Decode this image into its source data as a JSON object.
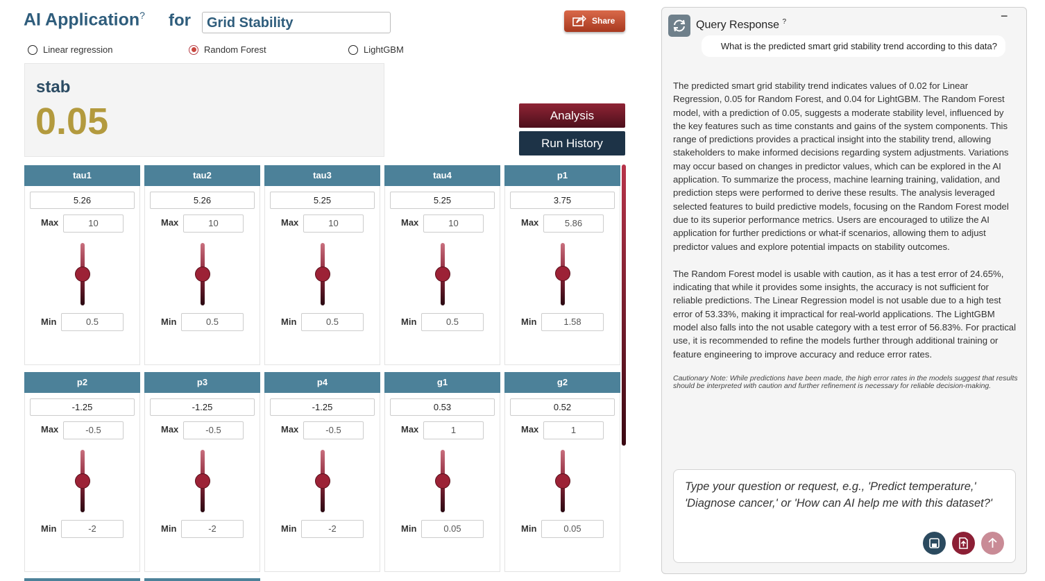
{
  "header": {
    "title": "AI Application",
    "info": "?",
    "for": "for",
    "dataset": "Grid Stability",
    "share": "Share"
  },
  "models": [
    "Linear regression",
    "Random Forest",
    "LightGBM"
  ],
  "selected_model": 1,
  "prediction": {
    "target": "stab",
    "value": "0.05"
  },
  "buttons": {
    "analysis": "Analysis",
    "run_history": "Run History"
  },
  "labels": {
    "max": "Max",
    "min": "Min"
  },
  "features": [
    {
      "name": "tau1",
      "value": "5.26",
      "max": "10",
      "min": "0.5"
    },
    {
      "name": "tau2",
      "value": "5.26",
      "max": "10",
      "min": "0.5"
    },
    {
      "name": "tau3",
      "value": "5.25",
      "max": "10",
      "min": "0.5"
    },
    {
      "name": "tau4",
      "value": "5.25",
      "max": "10",
      "min": "0.5"
    },
    {
      "name": "p1",
      "value": "3.75",
      "max": "5.86",
      "min": "1.58"
    },
    {
      "name": "p2",
      "value": "-1.25",
      "max": "-0.5",
      "min": "-2"
    },
    {
      "name": "p3",
      "value": "-1.25",
      "max": "-0.5",
      "min": "-2"
    },
    {
      "name": "p4",
      "value": "-1.25",
      "max": "-0.5",
      "min": "-2"
    },
    {
      "name": "g1",
      "value": "0.53",
      "max": "1",
      "min": "0.05"
    },
    {
      "name": "g2",
      "value": "0.52",
      "max": "1",
      "min": "0.05"
    }
  ],
  "query": {
    "title": "Query Response",
    "info": "?",
    "minimize": "−",
    "question": "What is the predicted smart grid stability trend according to this data?",
    "paragraphs": [
      "The predicted smart grid stability trend indicates values of 0.02 for Linear Regression, 0.05 for Random Forest, and 0.04 for LightGBM. The Random Forest model, with a prediction of 0.05, suggests a moderate stability level, influenced by the key features such as time constants and gains of the system components. This range of predictions provides a practical insight into the stability trend, allowing stakeholders to make informed decisions regarding system adjustments. Variations may occur based on changes in predictor values, which can be explored in the AI application. To summarize the process, machine learning training, validation, and prediction steps were performed to derive these results. The analysis leveraged selected features to build predictive models, focusing on the Random Forest model due to its superior performance metrics. Users are encouraged to utilize the AI application for further predictions or what-if scenarios, allowing them to adjust predictor values and explore potential impacts on stability outcomes.",
      "The Random Forest model is usable with caution, as it has a test error of 24.65%, indicating that while it provides some insights, the accuracy is not sufficient for reliable predictions. The Linear Regression model is not usable due to a high test error of 53.33%, making it impractical for real-world applications. The LightGBM model also falls into the not usable category with a test error of 56.83%. For practical use, it is recommended to refine the models further through additional training or feature engineering to improve accuracy and reduce error rates."
    ],
    "note": "Cautionary Note: While predictions have been made, the high error rates in the models suggest that results should be interpreted with caution and further refinement is necessary for reliable decision-making.",
    "placeholder": "Type your question or request, e.g., 'Predict temperature,' 'Diagnose cancer,' or 'How can AI help me with this dataset?'"
  }
}
